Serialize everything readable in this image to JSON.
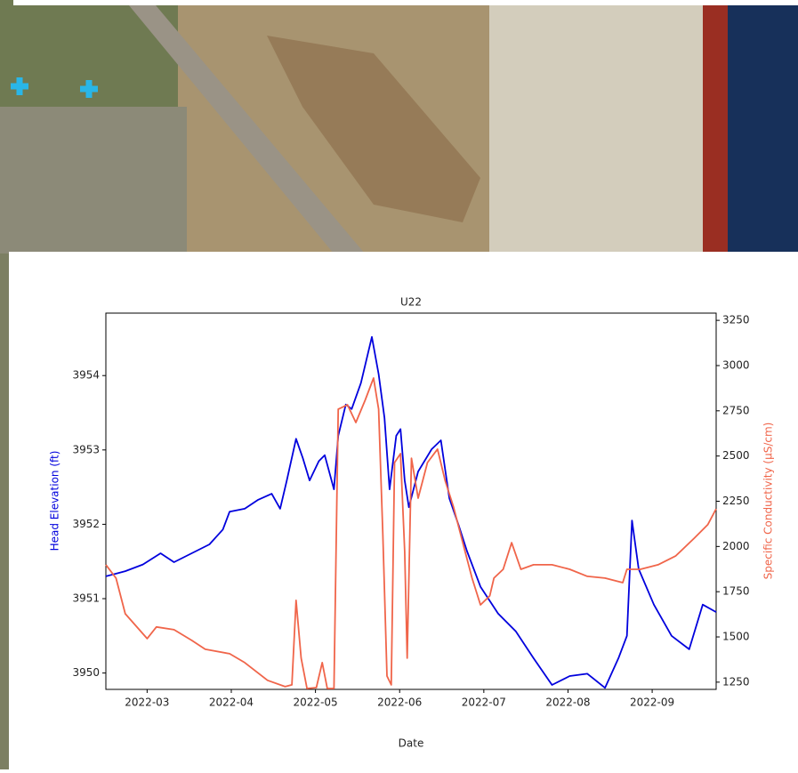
{
  "chart_data": {
    "type": "line",
    "title": "U22",
    "x_label": "Date",
    "y_label": "Head Elevation (ft)",
    "y2_label": "Specific Conductivity (µS/cm)",
    "xlim": [
      2.51,
      9.76
    ],
    "xticks": [
      {
        "value": 3,
        "label": "2022-03"
      },
      {
        "value": 4,
        "label": "2022-04"
      },
      {
        "value": 5,
        "label": "2022-05"
      },
      {
        "value": 6,
        "label": "2022-06"
      },
      {
        "value": 7,
        "label": "2022-07"
      },
      {
        "value": 8,
        "label": "2022-08"
      },
      {
        "value": 9,
        "label": "2022-09"
      }
    ],
    "ylim": [
      3949.78,
      3954.84
    ],
    "yticks": [
      3950,
      3951,
      3952,
      3953,
      3954
    ],
    "y2lim": [
      1210,
      3290
    ],
    "y2ticks": [
      1250,
      1500,
      1750,
      2000,
      2250,
      2500,
      2750,
      3000,
      3250
    ],
    "series": [
      {
        "name": "Head Elevation (ft)",
        "color": "#0000dd",
        "axis": "y",
        "x": [
          2.51,
          2.74,
          2.95,
          3.16,
          3.32,
          3.53,
          3.74,
          3.9,
          3.98,
          4.16,
          4.32,
          4.48,
          4.58,
          4.66,
          4.77,
          4.85,
          4.93,
          5.04,
          5.11,
          5.22,
          5.27,
          5.36,
          5.43,
          5.54,
          5.67,
          5.75,
          5.82,
          5.88,
          5.96,
          6.01,
          6.06,
          6.11,
          6.22,
          6.38,
          6.49,
          6.59,
          6.7,
          6.8,
          6.96,
          7.17,
          7.38,
          7.59,
          7.81,
          8.02,
          8.23,
          8.44,
          8.6,
          8.7,
          8.76,
          8.84,
          9.02,
          9.23,
          9.44,
          9.6,
          9.76
        ],
        "values": [
          3951.3,
          3951.37,
          3951.46,
          3951.61,
          3951.49,
          3951.61,
          3951.73,
          3951.93,
          3952.17,
          3952.21,
          3952.33,
          3952.41,
          3952.21,
          3952.59,
          3953.15,
          3952.89,
          3952.59,
          3952.85,
          3952.93,
          3952.47,
          3953.19,
          3953.61,
          3953.55,
          3953.9,
          3954.52,
          3954.02,
          3953.43,
          3952.47,
          3953.19,
          3953.28,
          3952.59,
          3952.23,
          3952.71,
          3953.01,
          3953.13,
          3952.35,
          3951.99,
          3951.64,
          3951.16,
          3950.8,
          3950.56,
          3950.2,
          3949.84,
          3949.96,
          3949.99,
          3949.8,
          3950.2,
          3950.5,
          3952.05,
          3951.4,
          3950.92,
          3950.5,
          3950.32,
          3950.92,
          3950.82
        ]
      },
      {
        "name": "Specific Conductivity (µS/cm)",
        "color": "#f0654a",
        "axis": "y2",
        "x": [
          2.51,
          2.63,
          2.74,
          3.0,
          3.11,
          3.32,
          3.53,
          3.69,
          3.98,
          4.16,
          4.43,
          4.64,
          4.72,
          4.77,
          4.83,
          4.9,
          5.01,
          5.08,
          5.14,
          5.22,
          5.27,
          5.38,
          5.48,
          5.59,
          5.69,
          5.75,
          5.8,
          5.85,
          5.9,
          5.94,
          6.01,
          6.06,
          6.09,
          6.14,
          6.22,
          6.33,
          6.45,
          6.54,
          6.64,
          6.75,
          6.86,
          6.96,
          7.07,
          7.12,
          7.23,
          7.33,
          7.44,
          7.59,
          7.81,
          8.02,
          8.23,
          8.44,
          8.65,
          8.7,
          8.86,
          9.07,
          9.28,
          9.5,
          9.66,
          9.76
        ],
        "values": [
          1899,
          1825,
          1628,
          1491,
          1555,
          1540,
          1481,
          1432,
          1407,
          1358,
          1260,
          1225,
          1235,
          1702,
          1383,
          1215,
          1220,
          1358,
          1215,
          1215,
          2759,
          2783,
          2685,
          2808,
          2931,
          2759,
          2071,
          1284,
          1235,
          2464,
          2513,
          1972,
          1383,
          2488,
          2267,
          2464,
          2538,
          2365,
          2218,
          2021,
          1825,
          1677,
          1727,
          1825,
          1874,
          2021,
          1874,
          1899,
          1899,
          1874,
          1835,
          1825,
          1800,
          1874,
          1874,
          1899,
          1948,
          2046,
          2120,
          2208
        ]
      }
    ]
  }
}
